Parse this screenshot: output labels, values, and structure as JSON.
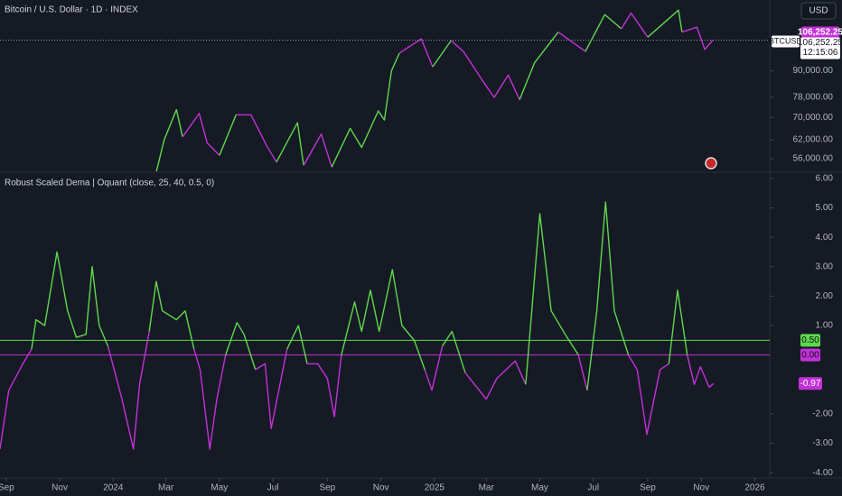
{
  "chart_data": [
    {
      "type": "line",
      "title": "Bitcoin / U.S. Dollar · 1D · INDEX",
      "currency": "USD",
      "symbol": "BTCUSD",
      "countdown": "12:15:06",
      "log_scale": true,
      "up_color": "#5fd84c",
      "down_color": "#c232d8",
      "xlim": [
        "2023-08-25",
        "2026-01-18"
      ],
      "ylim": [
        52300,
        132000
      ],
      "yticks": [
        {
          "value": 56000,
          "label": "56,000.00"
        },
        {
          "value": 62000,
          "label": "62,000.00"
        },
        {
          "value": 70000,
          "label": "70,000.00"
        },
        {
          "value": 78000,
          "label": "78,000.00"
        },
        {
          "value": 90000,
          "label": "90,000.00"
        }
      ],
      "x": [
        "2024-02-19",
        "2024-02-28",
        "2024-03-13",
        "2024-03-20",
        "2024-04-08",
        "2024-04-17",
        "2024-05-01",
        "2024-05-20",
        "2024-06-06",
        "2024-06-24",
        "2024-07-05",
        "2024-07-29",
        "2024-08-05",
        "2024-08-25",
        "2024-09-06",
        "2024-09-27",
        "2024-10-10",
        "2024-10-29",
        "2024-11-05",
        "2024-11-13",
        "2024-11-22",
        "2024-12-17",
        "2024-12-30",
        "2025-01-20",
        "2025-02-03",
        "2025-02-27",
        "2025-03-10",
        "2025-03-26",
        "2025-04-08",
        "2025-04-25",
        "2025-05-22",
        "2025-06-22",
        "2025-07-14",
        "2025-08-02",
        "2025-08-13",
        "2025-09-01",
        "2025-10-06",
        "2025-10-10",
        "2025-10-27",
        "2025-11-05",
        "2025-11-14"
      ],
      "values": [
        52000,
        62000,
        73000,
        63000,
        71500,
        61000,
        57000,
        71000,
        71000,
        60000,
        55000,
        68000,
        54000,
        64000,
        53500,
        66000,
        59500,
        72500,
        69000,
        90000,
        99000,
        107000,
        92000,
        106000,
        100000,
        84000,
        78000,
        88000,
        77000,
        94000,
        111000,
        100000,
        122000,
        113000,
        123000,
        108000,
        125000,
        111000,
        114000,
        101000,
        106252.25
      ],
      "last_value_label": "106,252.25"
    },
    {
      "type": "line",
      "title": "Robust Scaled Dema | Oquant (close, 25, 40, 0.5, 0)",
      "up_color": "#5fd84c",
      "down_color": "#c232d8",
      "xlim": [
        "2023-08-25",
        "2026-01-18"
      ],
      "ylim": [
        -4.18,
        6.18
      ],
      "xticks": [
        {
          "value": "2023-09-01",
          "label": "Sep"
        },
        {
          "value": "2023-11-01",
          "label": "Nov"
        },
        {
          "value": "2024-01-01",
          "label": "2024"
        },
        {
          "value": "2024-03-01",
          "label": "Mar"
        },
        {
          "value": "2024-05-01",
          "label": "May"
        },
        {
          "value": "2024-07-01",
          "label": "Jul"
        },
        {
          "value": "2024-09-01",
          "label": "Sep"
        },
        {
          "value": "2024-11-01",
          "label": "Nov"
        },
        {
          "value": "2025-01-01",
          "label": "2025"
        },
        {
          "value": "2025-03-01",
          "label": "Mar"
        },
        {
          "value": "2025-05-01",
          "label": "May"
        },
        {
          "value": "2025-07-01",
          "label": "Jul"
        },
        {
          "value": "2025-09-01",
          "label": "Sep"
        },
        {
          "value": "2025-11-01",
          "label": "Nov"
        },
        {
          "value": "2026-01-01",
          "label": "2026"
        }
      ],
      "yticks": [
        {
          "value": 6,
          "label": "6.00"
        },
        {
          "value": 5,
          "label": "5.00"
        },
        {
          "value": 4,
          "label": "4.00"
        },
        {
          "value": 3,
          "label": "3.00"
        },
        {
          "value": 2,
          "label": "2.00"
        },
        {
          "value": 1,
          "label": "1.00"
        },
        {
          "value": -2,
          "label": "-2.00"
        },
        {
          "value": -3,
          "label": "-3.00"
        },
        {
          "value": -4,
          "label": "-4.00"
        }
      ],
      "levels": [
        {
          "value": 0.5,
          "label": "0.50",
          "color": "#5fd84c"
        },
        {
          "value": 0,
          "label": "0.00",
          "color": "#c232d8"
        }
      ],
      "x": [
        "2023-08-25",
        "2023-09-04",
        "2023-09-20",
        "2023-09-30",
        "2023-10-05",
        "2023-10-15",
        "2023-10-29",
        "2023-11-10",
        "2023-11-20",
        "2023-12-01",
        "2023-12-08",
        "2023-12-16",
        "2023-12-26",
        "2024-01-11",
        "2024-01-24",
        "2024-01-31",
        "2024-02-11",
        "2024-02-19",
        "2024-02-26",
        "2024-03-13",
        "2024-03-23",
        "2024-04-02",
        "2024-04-09",
        "2024-04-20",
        "2024-04-28",
        "2024-05-08",
        "2024-05-21",
        "2024-05-29",
        "2024-06-11",
        "2024-06-22",
        "2024-06-29",
        "2024-07-09",
        "2024-07-17",
        "2024-07-30",
        "2024-08-09",
        "2024-08-21",
        "2024-09-01",
        "2024-09-09",
        "2024-09-17",
        "2024-10-02",
        "2024-10-10",
        "2024-10-20",
        "2024-10-30",
        "2024-11-14",
        "2024-11-25",
        "2024-12-09",
        "2024-12-21",
        "2024-12-29",
        "2025-01-10",
        "2025-01-21",
        "2025-02-05",
        "2025-03-01",
        "2025-03-13",
        "2025-04-03",
        "2025-04-15",
        "2025-05-01",
        "2025-05-14",
        "2025-05-30",
        "2025-06-14",
        "2025-06-24",
        "2025-07-05",
        "2025-07-15",
        "2025-07-25",
        "2025-08-10",
        "2025-08-20",
        "2025-08-31",
        "2025-09-15",
        "2025-09-25",
        "2025-10-05",
        "2025-10-16",
        "2025-10-24",
        "2025-10-31",
        "2025-11-10",
        "2025-11-15"
      ],
      "values": [
        -3.2,
        -1.2,
        -0.3,
        0.2,
        1.2,
        1.0,
        3.5,
        1.5,
        0.6,
        0.7,
        3.0,
        1.0,
        0.3,
        -1.5,
        -3.2,
        -1.0,
        0.8,
        2.5,
        1.5,
        1.2,
        1.5,
        0.2,
        -0.5,
        -3.2,
        -1.5,
        0.0,
        1.1,
        0.7,
        -0.5,
        -0.3,
        -2.5,
        -1.0,
        0.2,
        1.0,
        -0.3,
        -0.3,
        -0.8,
        -2.1,
        0.0,
        1.8,
        0.8,
        2.2,
        0.8,
        2.9,
        1.0,
        0.5,
        -0.5,
        -1.2,
        0.3,
        0.8,
        -0.6,
        -1.5,
        -0.8,
        -0.2,
        -1.0,
        4.8,
        1.5,
        0.7,
        0.0,
        -1.2,
        1.5,
        5.2,
        1.5,
        0.0,
        -0.5,
        -2.7,
        -0.5,
        -0.3,
        2.2,
        0.0,
        -1.0,
        -0.4,
        -1.1,
        -0.97
      ],
      "last_value_label": "-0.97"
    }
  ]
}
